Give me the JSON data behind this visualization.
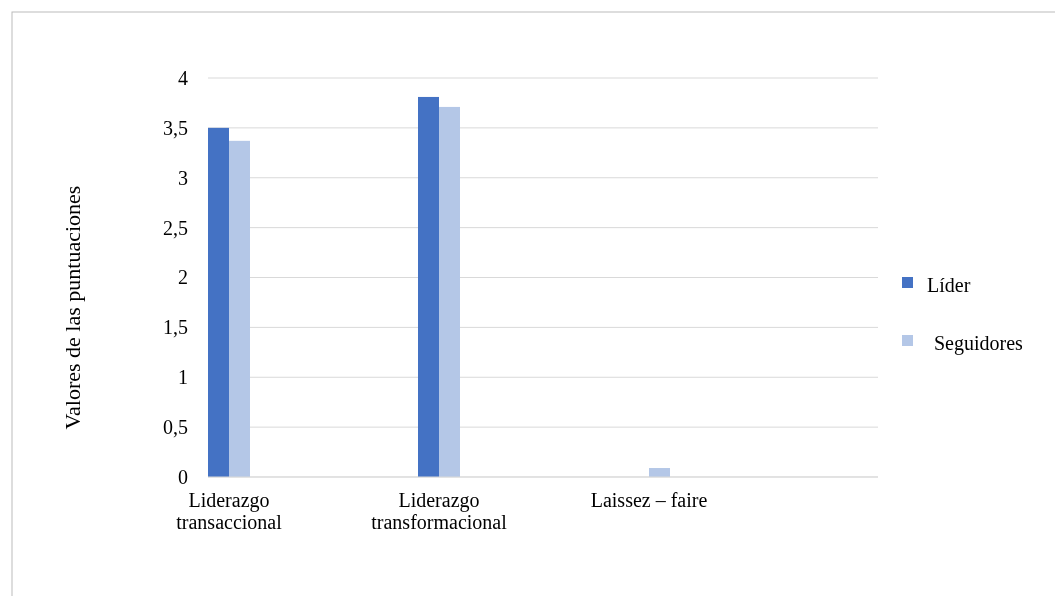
{
  "chart_data": {
    "type": "bar",
    "ylabel": "Valores de las puntuaciones",
    "categories": [
      "Liderazgo transaccional",
      "Liderazgo transformacional",
      "Laissez – faire"
    ],
    "series": [
      {
        "name": "Líder",
        "color": "#4472c4",
        "values": [
          3.5,
          3.81,
          0
        ]
      },
      {
        "name": "Seguidores",
        "color": "#b4c7e7",
        "values": [
          3.37,
          3.71,
          0.09
        ]
      }
    ],
    "ylim": [
      0,
      4
    ],
    "yticks": [
      0,
      {
        "value": 0.5,
        "label": "0,5"
      },
      1,
      {
        "value": 1.5,
        "label": "1,5"
      },
      2,
      {
        "value": 2.5,
        "label": "2,5"
      },
      3,
      {
        "value": 3.5,
        "label": "3,5"
      },
      4
    ],
    "grid": "y",
    "legend": "right"
  }
}
